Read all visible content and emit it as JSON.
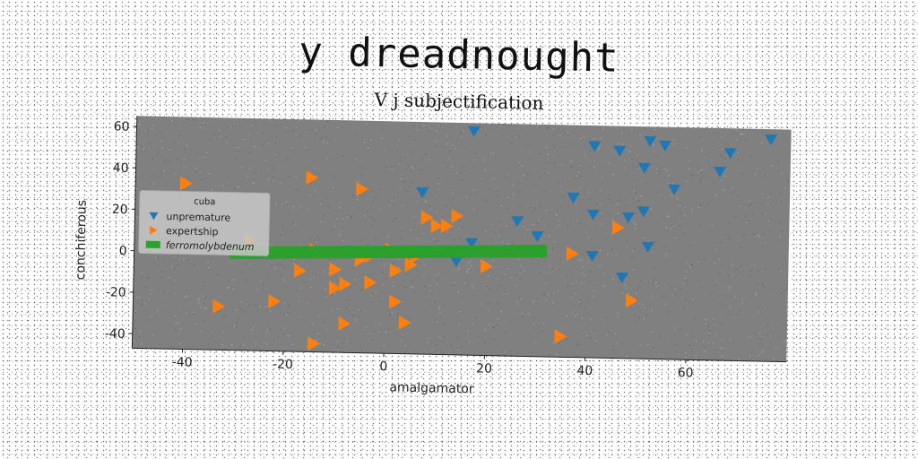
{
  "chart_data": {
    "type": "scatter",
    "title": "y dreadnought",
    "subtitle": "V j subjectification",
    "xlabel": "amalgamator",
    "ylabel": "conchiferous",
    "xlim": [
      -50,
      80
    ],
    "ylim": [
      -47,
      65
    ],
    "xticks": [
      -40,
      -20,
      0,
      20,
      40,
      60
    ],
    "yticks": [
      -40,
      -20,
      0,
      20,
      40,
      60
    ],
    "grid": false,
    "legend": {
      "title": "cuba",
      "placement": "center-left"
    },
    "colors": {
      "plot_bg": "#808080",
      "blue": "#1f77b4",
      "orange": "#ff7f0e",
      "green": "#2ca02c"
    },
    "series": [
      {
        "name": "unpremature",
        "marker": "triangle-down",
        "color": "#1f77b4",
        "points": [
          [
            17,
            61
          ],
          [
            7,
            31
          ],
          [
            17,
            7
          ],
          [
            14,
            -2
          ],
          [
            26,
            18
          ],
          [
            30,
            11
          ],
          [
            37,
            30
          ],
          [
            41,
            55
          ],
          [
            46,
            53
          ],
          [
            52,
            58
          ],
          [
            55,
            56
          ],
          [
            51,
            45
          ],
          [
            57,
            35
          ],
          [
            41,
            22
          ],
          [
            48,
            21
          ],
          [
            51,
            24
          ],
          [
            52,
            7
          ],
          [
            41,
            2
          ],
          [
            47,
            -8
          ],
          [
            66,
            44
          ],
          [
            68,
            53
          ],
          [
            76,
            60
          ]
        ]
      },
      {
        "name": "expertship",
        "marker": "triangle-right",
        "color": "#ff7f0e",
        "points": [
          [
            -40,
            33
          ],
          [
            -15,
            37
          ],
          [
            -5,
            32
          ],
          [
            8,
            19
          ],
          [
            10,
            15
          ],
          [
            12,
            15
          ],
          [
            14,
            20
          ],
          [
            1,
            3
          ],
          [
            -14,
            2
          ],
          [
            -3,
            0
          ],
          [
            -5,
            -2
          ],
          [
            -10,
            -7
          ],
          [
            -17,
            -8
          ],
          [
            -8,
            -14
          ],
          [
            -10,
            -16
          ],
          [
            -3,
            -13
          ],
          [
            2,
            -7
          ],
          [
            5,
            -4
          ],
          [
            6,
            0
          ],
          [
            20,
            -4
          ],
          [
            2,
            -22
          ],
          [
            -22,
            -23
          ],
          [
            -33,
            -26
          ],
          [
            -8,
            -33
          ],
          [
            4,
            -32
          ],
          [
            -14,
            -43
          ],
          [
            35,
            -37
          ],
          [
            37,
            3
          ],
          [
            46,
            16
          ],
          [
            49,
            -19
          ],
          [
            -27,
            6
          ]
        ]
      },
      {
        "name": "ferromolybdenum",
        "marker": "line",
        "color": "#2ca02c",
        "points": [
          [
            -31,
            0
          ],
          [
            32,
            4
          ]
        ]
      }
    ]
  }
}
